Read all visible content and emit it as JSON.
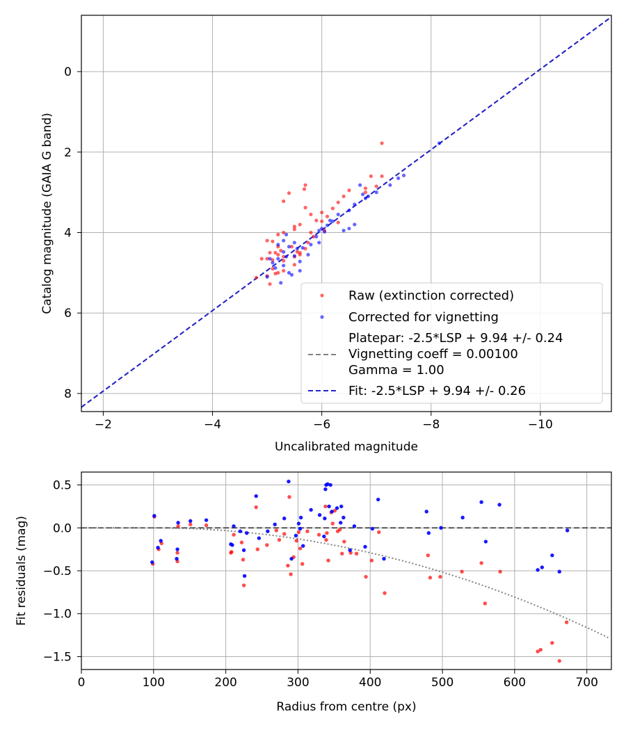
{
  "chart_data": [
    {
      "type": "scatter",
      "xlabel": "Uncalibrated magnitude",
      "ylabel": "Catalog magnitude (GAIA G band)",
      "xlim": [
        -1.6,
        -11.3
      ],
      "ylim": [
        8.45,
        -1.4
      ],
      "xticks": [
        -2,
        -4,
        -6,
        -8,
        -10
      ],
      "xtick_labels": [
        "−2",
        "−4",
        "−6",
        "−8",
        "−10"
      ],
      "yticks": [
        0,
        2,
        4,
        6,
        8
      ],
      "ytick_labels": [
        "0",
        "2",
        "4",
        "6",
        "8"
      ],
      "grid": true,
      "legend_position": "lower-right",
      "legend": {
        "raw": "Raw (extinction corrected)",
        "corrected": "Corrected for vignetting",
        "platepar_lines": [
          "Platepar: -2.5*LSP + 9.94 +/- 0.24",
          "Vignetting coeff = 0.00100",
          "Gamma = 1.00"
        ],
        "fit": "Fit: -2.5*LSP + 9.94 +/- 0.26"
      },
      "colors": {
        "raw": "#ff0000",
        "corrected": "#0000ff",
        "platepar": "#808080",
        "fit": "#2222cc"
      },
      "fit_line": {
        "slope": 1.0,
        "intercept": 9.94
      },
      "series": [
        {
          "name": "Raw (extinction corrected)",
          "points": [
            [
              -7.1,
              1.78
            ],
            [
              -7.1,
              2.6
            ],
            [
              -6.9,
              2.6
            ],
            [
              -7.0,
              2.85
            ],
            [
              -6.8,
              2.9
            ],
            [
              -6.8,
              3.0
            ],
            [
              -6.5,
              2.95
            ],
            [
              -6.4,
              3.1
            ],
            [
              -6.3,
              3.25
            ],
            [
              -6.2,
              3.4
            ],
            [
              -6.0,
              3.5
            ],
            [
              -5.7,
              2.82
            ],
            [
              -5.68,
              2.92
            ],
            [
              -5.4,
              3.02
            ],
            [
              -5.3,
              3.22
            ],
            [
              -5.7,
              3.38
            ],
            [
              -5.8,
              3.55
            ],
            [
              -5.9,
              3.7
            ],
            [
              -6.1,
              3.6
            ],
            [
              -6.0,
              3.72
            ],
            [
              -5.6,
              3.8
            ],
            [
              -5.5,
              3.85
            ],
            [
              -5.5,
              3.92
            ],
            [
              -5.3,
              4.0
            ],
            [
              -5.2,
              4.05
            ],
            [
              -5.8,
              4.0
            ],
            [
              -5.85,
              4.1
            ],
            [
              -5.75,
              4.25
            ],
            [
              -5.7,
              4.4
            ],
            [
              -5.1,
              4.22
            ],
            [
              -5.0,
              4.2
            ],
            [
              -5.2,
              4.35
            ],
            [
              -5.25,
              4.45
            ],
            [
              -5.15,
              4.5
            ],
            [
              -5.05,
              4.5
            ],
            [
              -5.2,
              4.55
            ],
            [
              -5.3,
              4.6
            ],
            [
              -5.5,
              4.6
            ],
            [
              -5.55,
              4.48
            ],
            [
              -5.45,
              4.35
            ],
            [
              -5.6,
              4.55
            ],
            [
              -4.9,
              4.65
            ],
            [
              -5.0,
              4.65
            ],
            [
              -5.1,
              4.68
            ],
            [
              -5.3,
              4.7
            ],
            [
              -5.5,
              4.8
            ],
            [
              -5.1,
              4.9
            ],
            [
              -5.15,
              5.02
            ],
            [
              -5.2,
              5.0
            ],
            [
              -5.3,
              4.95
            ],
            [
              -5.0,
              5.08
            ],
            [
              -4.8,
              5.12
            ],
            [
              -5.05,
              5.28
            ],
            [
              -5.6,
              4.5
            ],
            [
              -6.05,
              3.95
            ],
            [
              -6.3,
              3.75
            ]
          ]
        },
        {
          "name": "Corrected for vignetting",
          "points": [
            [
              -8.15,
              1.78
            ],
            [
              -7.25,
              2.82
            ],
            [
              -7.4,
              2.65
            ],
            [
              -7.5,
              2.58
            ],
            [
              -7.0,
              3.0
            ],
            [
              -6.8,
              3.15
            ],
            [
              -6.6,
              3.3
            ],
            [
              -6.5,
              3.45
            ],
            [
              -6.7,
              2.82
            ],
            [
              -6.75,
              3.05
            ],
            [
              -6.3,
              3.55
            ],
            [
              -6.2,
              3.72
            ],
            [
              -6.1,
              3.82
            ],
            [
              -6.0,
              3.9
            ],
            [
              -6.05,
              3.98
            ],
            [
              -6.4,
              3.95
            ],
            [
              -6.5,
              3.9
            ],
            [
              -6.6,
              3.8
            ],
            [
              -5.9,
              4.1
            ],
            [
              -5.95,
              4.25
            ],
            [
              -5.8,
              4.3
            ],
            [
              -5.65,
              4.38
            ],
            [
              -5.75,
              4.55
            ],
            [
              -5.6,
              4.72
            ],
            [
              -5.5,
              4.58
            ],
            [
              -5.4,
              4.35
            ],
            [
              -5.5,
              4.25
            ],
            [
              -5.35,
              4.05
            ],
            [
              -5.3,
              4.2
            ],
            [
              -5.2,
              4.3
            ],
            [
              -5.3,
              4.48
            ],
            [
              -5.35,
              4.6
            ],
            [
              -5.2,
              4.65
            ],
            [
              -5.1,
              4.75
            ],
            [
              -5.05,
              4.65
            ],
            [
              -5.15,
              4.88
            ],
            [
              -5.3,
              4.82
            ],
            [
              -5.4,
              5.0
            ],
            [
              -5.45,
              5.05
            ],
            [
              -5.6,
              4.95
            ],
            [
              -5.25,
              5.25
            ],
            [
              -5.0,
              5.1
            ],
            [
              -5.95,
              3.95
            ],
            [
              -6.15,
              3.7
            ],
            [
              -6.85,
              3.1
            ],
            [
              -5.55,
              4.4
            ]
          ]
        }
      ]
    },
    {
      "type": "scatter",
      "xlabel": "Radius from centre (px)",
      "ylabel": "Fit residuals (mag)",
      "xlim": [
        0,
        734
      ],
      "ylim": [
        -1.65,
        0.65
      ],
      "xticks": [
        0,
        100,
        200,
        300,
        400,
        500,
        600,
        700
      ],
      "xtick_labels": [
        "0",
        "100",
        "200",
        "300",
        "400",
        "500",
        "600",
        "700"
      ],
      "yticks": [
        0.5,
        0.0,
        -0.5,
        -1.0,
        -1.5
      ],
      "ytick_labels": [
        "0.5",
        "0.0",
        "−0.5",
        "−1.0",
        "−1.5"
      ],
      "grid": true,
      "reference_line": 0.0,
      "vignetting_curve": {
        "coeff": 0.001,
        "start": 100
      },
      "colors": {
        "raw": "#ff0000",
        "corrected": "#0000ff",
        "zero_line": "#555555",
        "curve": "#808080"
      },
      "series": [
        {
          "name": "Raw (extinction corrected)",
          "points": [
            [
              99,
              -0.42
            ],
            [
              101,
              0.13
            ],
            [
              107,
              -0.25
            ],
            [
              111,
              -0.18
            ],
            [
              133,
              -0.39
            ],
            [
              133,
              -0.29
            ],
            [
              134,
              0.02
            ],
            [
              151,
              0.04
            ],
            [
              173,
              0.03
            ],
            [
              207,
              -0.29
            ],
            [
              208,
              -0.28
            ],
            [
              211,
              -0.08
            ],
            [
              222,
              -0.17
            ],
            [
              224,
              -0.37
            ],
            [
              225,
              -0.67
            ],
            [
              242,
              0.24
            ],
            [
              244,
              -0.25
            ],
            [
              257,
              -0.2
            ],
            [
              270,
              -0.03
            ],
            [
              274,
              -0.14
            ],
            [
              281,
              -0.07
            ],
            [
              286,
              -0.44
            ],
            [
              288,
              0.36
            ],
            [
              290,
              -0.54
            ],
            [
              294,
              -0.34
            ],
            [
              298,
              -0.15
            ],
            [
              301,
              -0.05
            ],
            [
              303,
              -0.24
            ],
            [
              306,
              -0.42
            ],
            [
              313,
              -0.04
            ],
            [
              329,
              -0.08
            ],
            [
              338,
              0.25
            ],
            [
              339,
              -0.14
            ],
            [
              340,
              -0.06
            ],
            [
              342,
              -0.38
            ],
            [
              346,
              0.18
            ],
            [
              348,
              0.05
            ],
            [
              351,
              0.2
            ],
            [
              355,
              -0.04
            ],
            [
              358,
              -0.02
            ],
            [
              361,
              -0.3
            ],
            [
              364,
              -0.16
            ],
            [
              373,
              -0.29
            ],
            [
              381,
              -0.3
            ],
            [
              394,
              -0.57
            ],
            [
              402,
              -0.38
            ],
            [
              412,
              -0.05
            ],
            [
              420,
              -0.76
            ],
            [
              480,
              -0.32
            ],
            [
              483,
              -0.58
            ],
            [
              497,
              -0.57
            ],
            [
              527,
              -0.51
            ],
            [
              554,
              -0.41
            ],
            [
              559,
              -0.88
            ],
            [
              580,
              -0.51
            ],
            [
              632,
              -1.44
            ],
            [
              636,
              -1.42
            ],
            [
              652,
              -1.34
            ],
            [
              662,
              -1.55
            ],
            [
              672,
              -1.1
            ]
          ]
        },
        {
          "name": "Corrected for vignetting",
          "points": [
            [
              98,
              -0.4
            ],
            [
              101,
              0.14
            ],
            [
              106,
              -0.23
            ],
            [
              110,
              -0.15
            ],
            [
              132,
              -0.36
            ],
            [
              133,
              -0.25
            ],
            [
              134,
              0.06
            ],
            [
              151,
              0.08
            ],
            [
              173,
              0.09
            ],
            [
              207,
              -0.19
            ],
            [
              209,
              -0.2
            ],
            [
              211,
              0.02
            ],
            [
              220,
              -0.04
            ],
            [
              225,
              -0.26
            ],
            [
              226,
              -0.56
            ],
            [
              229,
              -0.06
            ],
            [
              242,
              0.37
            ],
            [
              246,
              -0.12
            ],
            [
              258,
              -0.04
            ],
            [
              268,
              0.04
            ],
            [
              281,
              0.11
            ],
            [
              287,
              0.54
            ],
            [
              291,
              -0.36
            ],
            [
              297,
              -0.09
            ],
            [
              301,
              0.05
            ],
            [
              303,
              -0.01
            ],
            [
              304,
              0.12
            ],
            [
              307,
              -0.21
            ],
            [
              318,
              0.21
            ],
            [
              330,
              0.15
            ],
            [
              336,
              -0.1
            ],
            [
              337,
              0.11
            ],
            [
              338,
              0.45
            ],
            [
              339,
              0.5
            ],
            [
              341,
              0.51
            ],
            [
              343,
              0.25
            ],
            [
              345,
              0.5
            ],
            [
              347,
              0.19
            ],
            [
              354,
              0.23
            ],
            [
              359,
              0.06
            ],
            [
              360,
              0.25
            ],
            [
              363,
              0.12
            ],
            [
              372,
              -0.26
            ],
            [
              378,
              0.02
            ],
            [
              393,
              -0.22
            ],
            [
              403,
              -0.01
            ],
            [
              411,
              0.33
            ],
            [
              419,
              -0.36
            ],
            [
              478,
              0.19
            ],
            [
              481,
              -0.06
            ],
            [
              498,
              0.0
            ],
            [
              528,
              0.12
            ],
            [
              554,
              0.3
            ],
            [
              560,
              -0.16
            ],
            [
              579,
              0.27
            ],
            [
              632,
              -0.49
            ],
            [
              638,
              -0.46
            ],
            [
              652,
              -0.32
            ],
            [
              662,
              -0.51
            ],
            [
              673,
              -0.03
            ]
          ]
        }
      ]
    }
  ]
}
